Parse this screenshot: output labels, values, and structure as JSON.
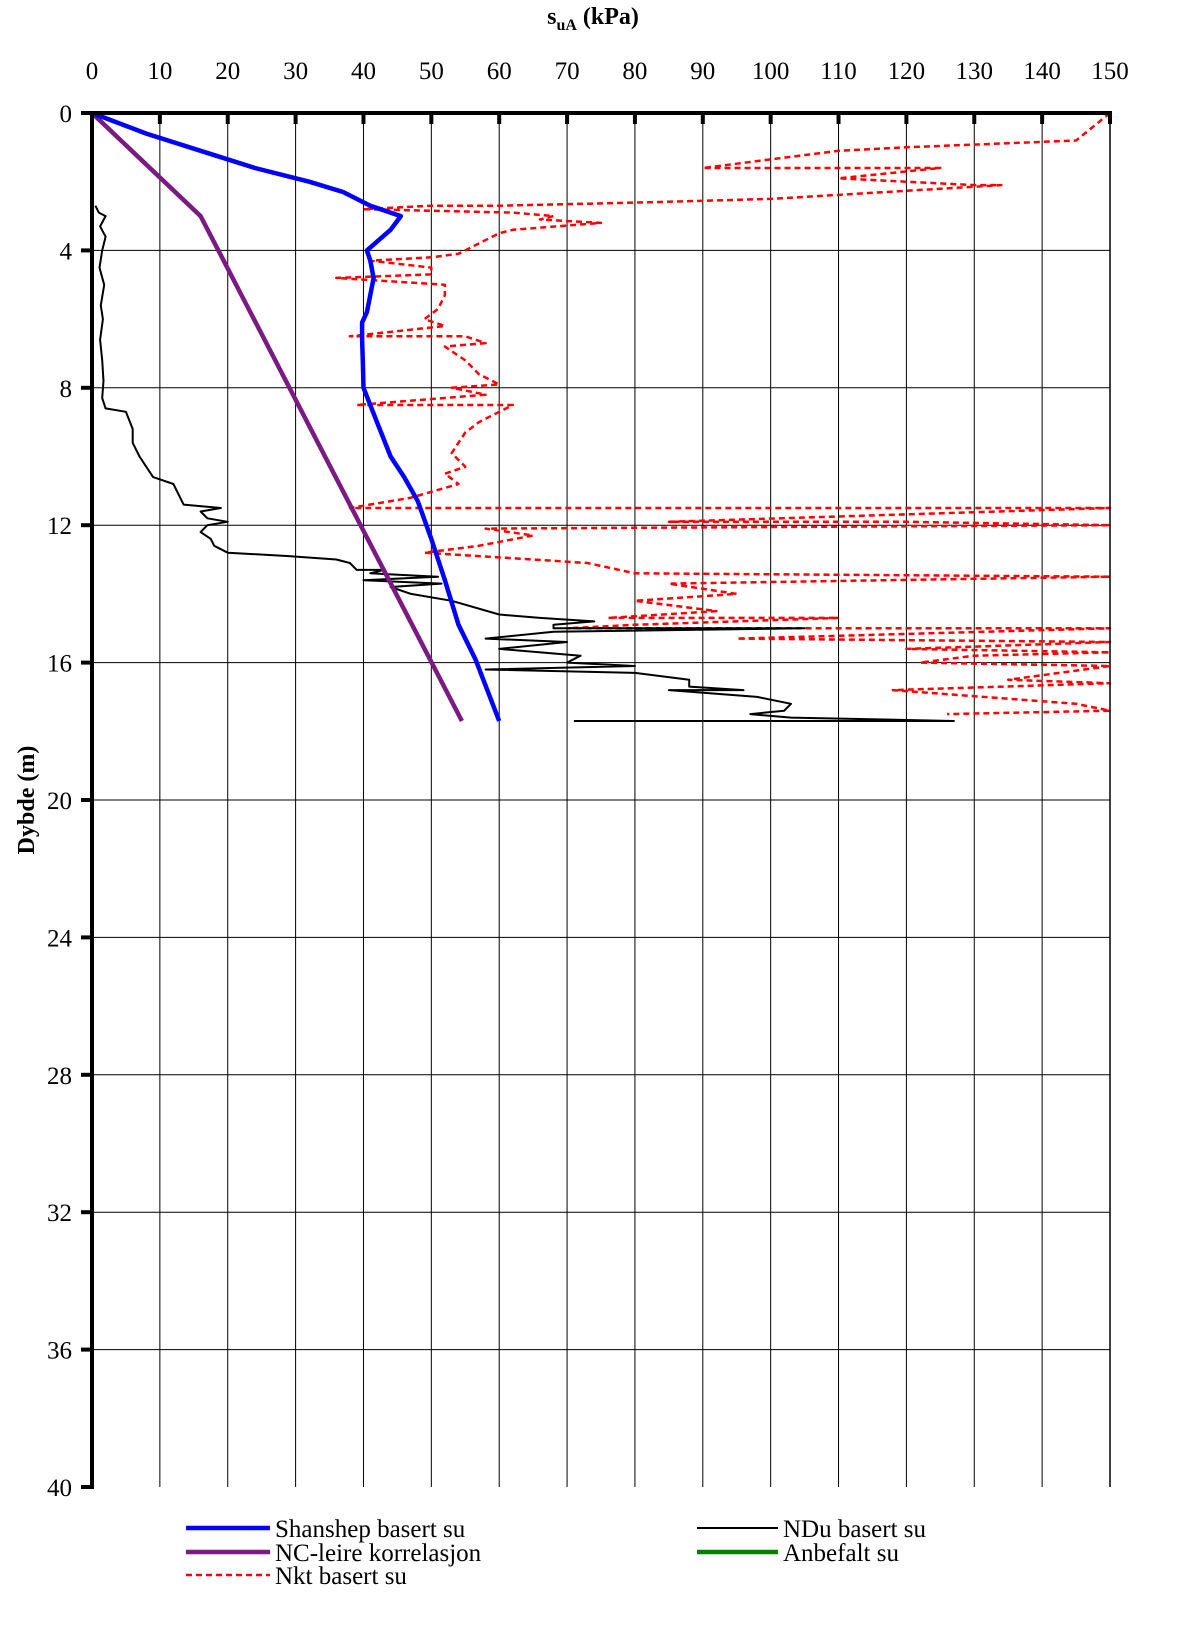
{
  "chart_data": {
    "type": "line",
    "x_title_main": "s",
    "x_title_sub": "uA",
    "x_title_unit": " (kPa)",
    "ylabel": "Dybde (m)",
    "xlim": [
      0,
      150
    ],
    "ylim": [
      0,
      40
    ],
    "y_reversed": true,
    "x_axis_position": "top",
    "xticks": [
      0,
      10,
      20,
      30,
      40,
      50,
      60,
      70,
      80,
      90,
      100,
      110,
      120,
      130,
      140,
      150
    ],
    "yticks": [
      0,
      4,
      8,
      12,
      16,
      20,
      24,
      28,
      32,
      36,
      40
    ],
    "grid": true,
    "legend_position": "bottom",
    "series": [
      {
        "name": "Shanshep basert su",
        "color": "#0000ff",
        "style": "solid-thick",
        "points": [
          [
            0,
            0
          ],
          [
            8,
            0.6
          ],
          [
            16,
            1.1
          ],
          [
            24,
            1.6
          ],
          [
            32,
            2.0
          ],
          [
            37,
            2.3
          ],
          [
            41,
            2.7
          ],
          [
            45.5,
            3.0
          ],
          [
            44,
            3.4
          ],
          [
            40.5,
            4.0
          ],
          [
            41,
            4.3
          ],
          [
            41.5,
            4.8
          ],
          [
            41,
            5.3
          ],
          [
            40.5,
            5.8
          ],
          [
            39.8,
            6.1
          ],
          [
            39.8,
            6.6
          ],
          [
            39.9,
            7.2
          ],
          [
            40,
            8.0
          ],
          [
            42,
            9.0
          ],
          [
            44,
            10.0
          ],
          [
            46,
            10.6
          ],
          [
            48,
            11.3
          ],
          [
            50,
            12.4
          ],
          [
            52,
            13.6
          ],
          [
            54,
            14.9
          ],
          [
            56.5,
            15.9
          ],
          [
            60,
            17.7
          ]
        ]
      },
      {
        "name": "NC-leire korrelasjon",
        "color": "#7a1a82",
        "style": "solid-thick",
        "points": [
          [
            0,
            0
          ],
          [
            16,
            3.0
          ],
          [
            54.5,
            17.7
          ]
        ]
      },
      {
        "name": "Nkt basert su",
        "color": "#ff0000",
        "style": "dashed",
        "points": [
          [
            150,
            0
          ],
          [
            145,
            0.8
          ],
          [
            120,
            1.0
          ],
          [
            110,
            1.1
          ],
          [
            90,
            1.6
          ],
          [
            125,
            1.6
          ],
          [
            110,
            1.9
          ],
          [
            130,
            2.1
          ],
          [
            134,
            2.1
          ],
          [
            100,
            2.5
          ],
          [
            82,
            2.6
          ],
          [
            60,
            2.7
          ],
          [
            50,
            2.7
          ],
          [
            40,
            2.8
          ],
          [
            62,
            2.9
          ],
          [
            68,
            3.0
          ],
          [
            66,
            3.1
          ],
          [
            75,
            3.2
          ],
          [
            62,
            3.4
          ],
          [
            60,
            3.5
          ],
          [
            57,
            3.8
          ],
          [
            54,
            4.1
          ],
          [
            50,
            4.2
          ],
          [
            41,
            4.3
          ],
          [
            50,
            4.5
          ],
          [
            50,
            4.7
          ],
          [
            36,
            4.8
          ],
          [
            52,
            5.0
          ],
          [
            52,
            5.3
          ],
          [
            51,
            5.7
          ],
          [
            49,
            6.0
          ],
          [
            52,
            6.2
          ],
          [
            38,
            6.5
          ],
          [
            55,
            6.5
          ],
          [
            58,
            6.7
          ],
          [
            52,
            6.8
          ],
          [
            55,
            7.2
          ],
          [
            57,
            7.6
          ],
          [
            60,
            7.9
          ],
          [
            53,
            8.0
          ],
          [
            58,
            8.2
          ],
          [
            39,
            8.5
          ],
          [
            62,
            8.5
          ],
          [
            57,
            9.0
          ],
          [
            55,
            9.3
          ],
          [
            53,
            9.9
          ],
          [
            55,
            10.3
          ],
          [
            52,
            10.5
          ],
          [
            54,
            10.8
          ],
          [
            47,
            11.2
          ],
          [
            38,
            11.5
          ],
          [
            150,
            11.5
          ],
          [
            85,
            11.9
          ],
          [
            120,
            11.9
          ],
          [
            150,
            12.0
          ],
          [
            58,
            12.1
          ],
          [
            65,
            12.3
          ],
          [
            57,
            12.6
          ],
          [
            49,
            12.8
          ],
          [
            73,
            13.1
          ],
          [
            80,
            13.4
          ],
          [
            150,
            13.5
          ],
          [
            85,
            13.7
          ],
          [
            95,
            14.0
          ],
          [
            80,
            14.2
          ],
          [
            88,
            14.4
          ],
          [
            92,
            14.5
          ],
          [
            76,
            14.7
          ],
          [
            110,
            14.7
          ],
          [
            80,
            14.9
          ],
          [
            70,
            15.0
          ],
          [
            150,
            15.0
          ],
          [
            95,
            15.3
          ],
          [
            150,
            15.4
          ],
          [
            120,
            15.6
          ],
          [
            150,
            15.7
          ],
          [
            130,
            15.8
          ],
          [
            122,
            16.0
          ],
          [
            150,
            16.1
          ],
          [
            135,
            16.5
          ],
          [
            150,
            16.6
          ],
          [
            118,
            16.8
          ],
          [
            145,
            17.2
          ],
          [
            150,
            17.4
          ],
          [
            126,
            17.5
          ]
        ]
      },
      {
        "name": "NDu basert su",
        "color": "#000000",
        "style": "solid-thin",
        "points": [
          [
            0.5,
            2.7
          ],
          [
            1,
            2.9
          ],
          [
            2,
            3.0
          ],
          [
            1.2,
            3.3
          ],
          [
            2.0,
            3.6
          ],
          [
            1.5,
            4.0
          ],
          [
            1.1,
            4.5
          ],
          [
            1.8,
            5.0
          ],
          [
            1.3,
            5.6
          ],
          [
            1.6,
            6.0
          ],
          [
            1.2,
            6.6
          ],
          [
            1.5,
            7.2
          ],
          [
            1.7,
            7.8
          ],
          [
            1.5,
            8.3
          ],
          [
            2,
            8.6
          ],
          [
            5,
            8.7
          ],
          [
            6,
            9.2
          ],
          [
            6,
            9.6
          ],
          [
            7,
            10.0
          ],
          [
            8,
            10.3
          ],
          [
            9,
            10.6
          ],
          [
            12,
            10.8
          ],
          [
            13,
            11.2
          ],
          [
            13.5,
            11.4
          ],
          [
            19,
            11.5
          ],
          [
            16,
            11.6
          ],
          [
            17,
            11.8
          ],
          [
            20,
            11.9
          ],
          [
            17,
            12.0
          ],
          [
            16,
            12.2
          ],
          [
            17.5,
            12.4
          ],
          [
            18,
            12.6
          ],
          [
            20,
            12.8
          ],
          [
            29,
            12.9
          ],
          [
            36,
            13.0
          ],
          [
            38,
            13.1
          ],
          [
            39,
            13.3
          ],
          [
            43,
            13.3
          ],
          [
            41,
            13.4
          ],
          [
            51,
            13.5
          ],
          [
            40,
            13.6
          ],
          [
            51.5,
            13.7
          ],
          [
            44,
            13.8
          ],
          [
            47,
            14.0
          ],
          [
            53,
            14.2
          ],
          [
            60,
            14.6
          ],
          [
            66,
            14.7
          ],
          [
            74,
            14.8
          ],
          [
            68,
            14.9
          ],
          [
            68,
            15.0
          ],
          [
            105,
            15.0
          ],
          [
            68,
            15.1
          ],
          [
            58,
            15.3
          ],
          [
            70,
            15.4
          ],
          [
            60,
            15.6
          ],
          [
            72,
            15.8
          ],
          [
            70,
            16.0
          ],
          [
            80,
            16.1
          ],
          [
            58,
            16.2
          ],
          [
            80,
            16.3
          ],
          [
            88,
            16.5
          ],
          [
            88,
            16.7
          ],
          [
            96,
            16.8
          ],
          [
            85,
            16.8
          ],
          [
            98,
            17.0
          ],
          [
            103,
            17.2
          ],
          [
            102,
            17.4
          ],
          [
            97,
            17.5
          ],
          [
            103,
            17.6
          ],
          [
            127,
            17.7
          ],
          [
            71,
            17.7
          ]
        ]
      },
      {
        "name": "Anbefalt su",
        "color": "#008000",
        "style": "solid-thick",
        "points": []
      }
    ]
  }
}
